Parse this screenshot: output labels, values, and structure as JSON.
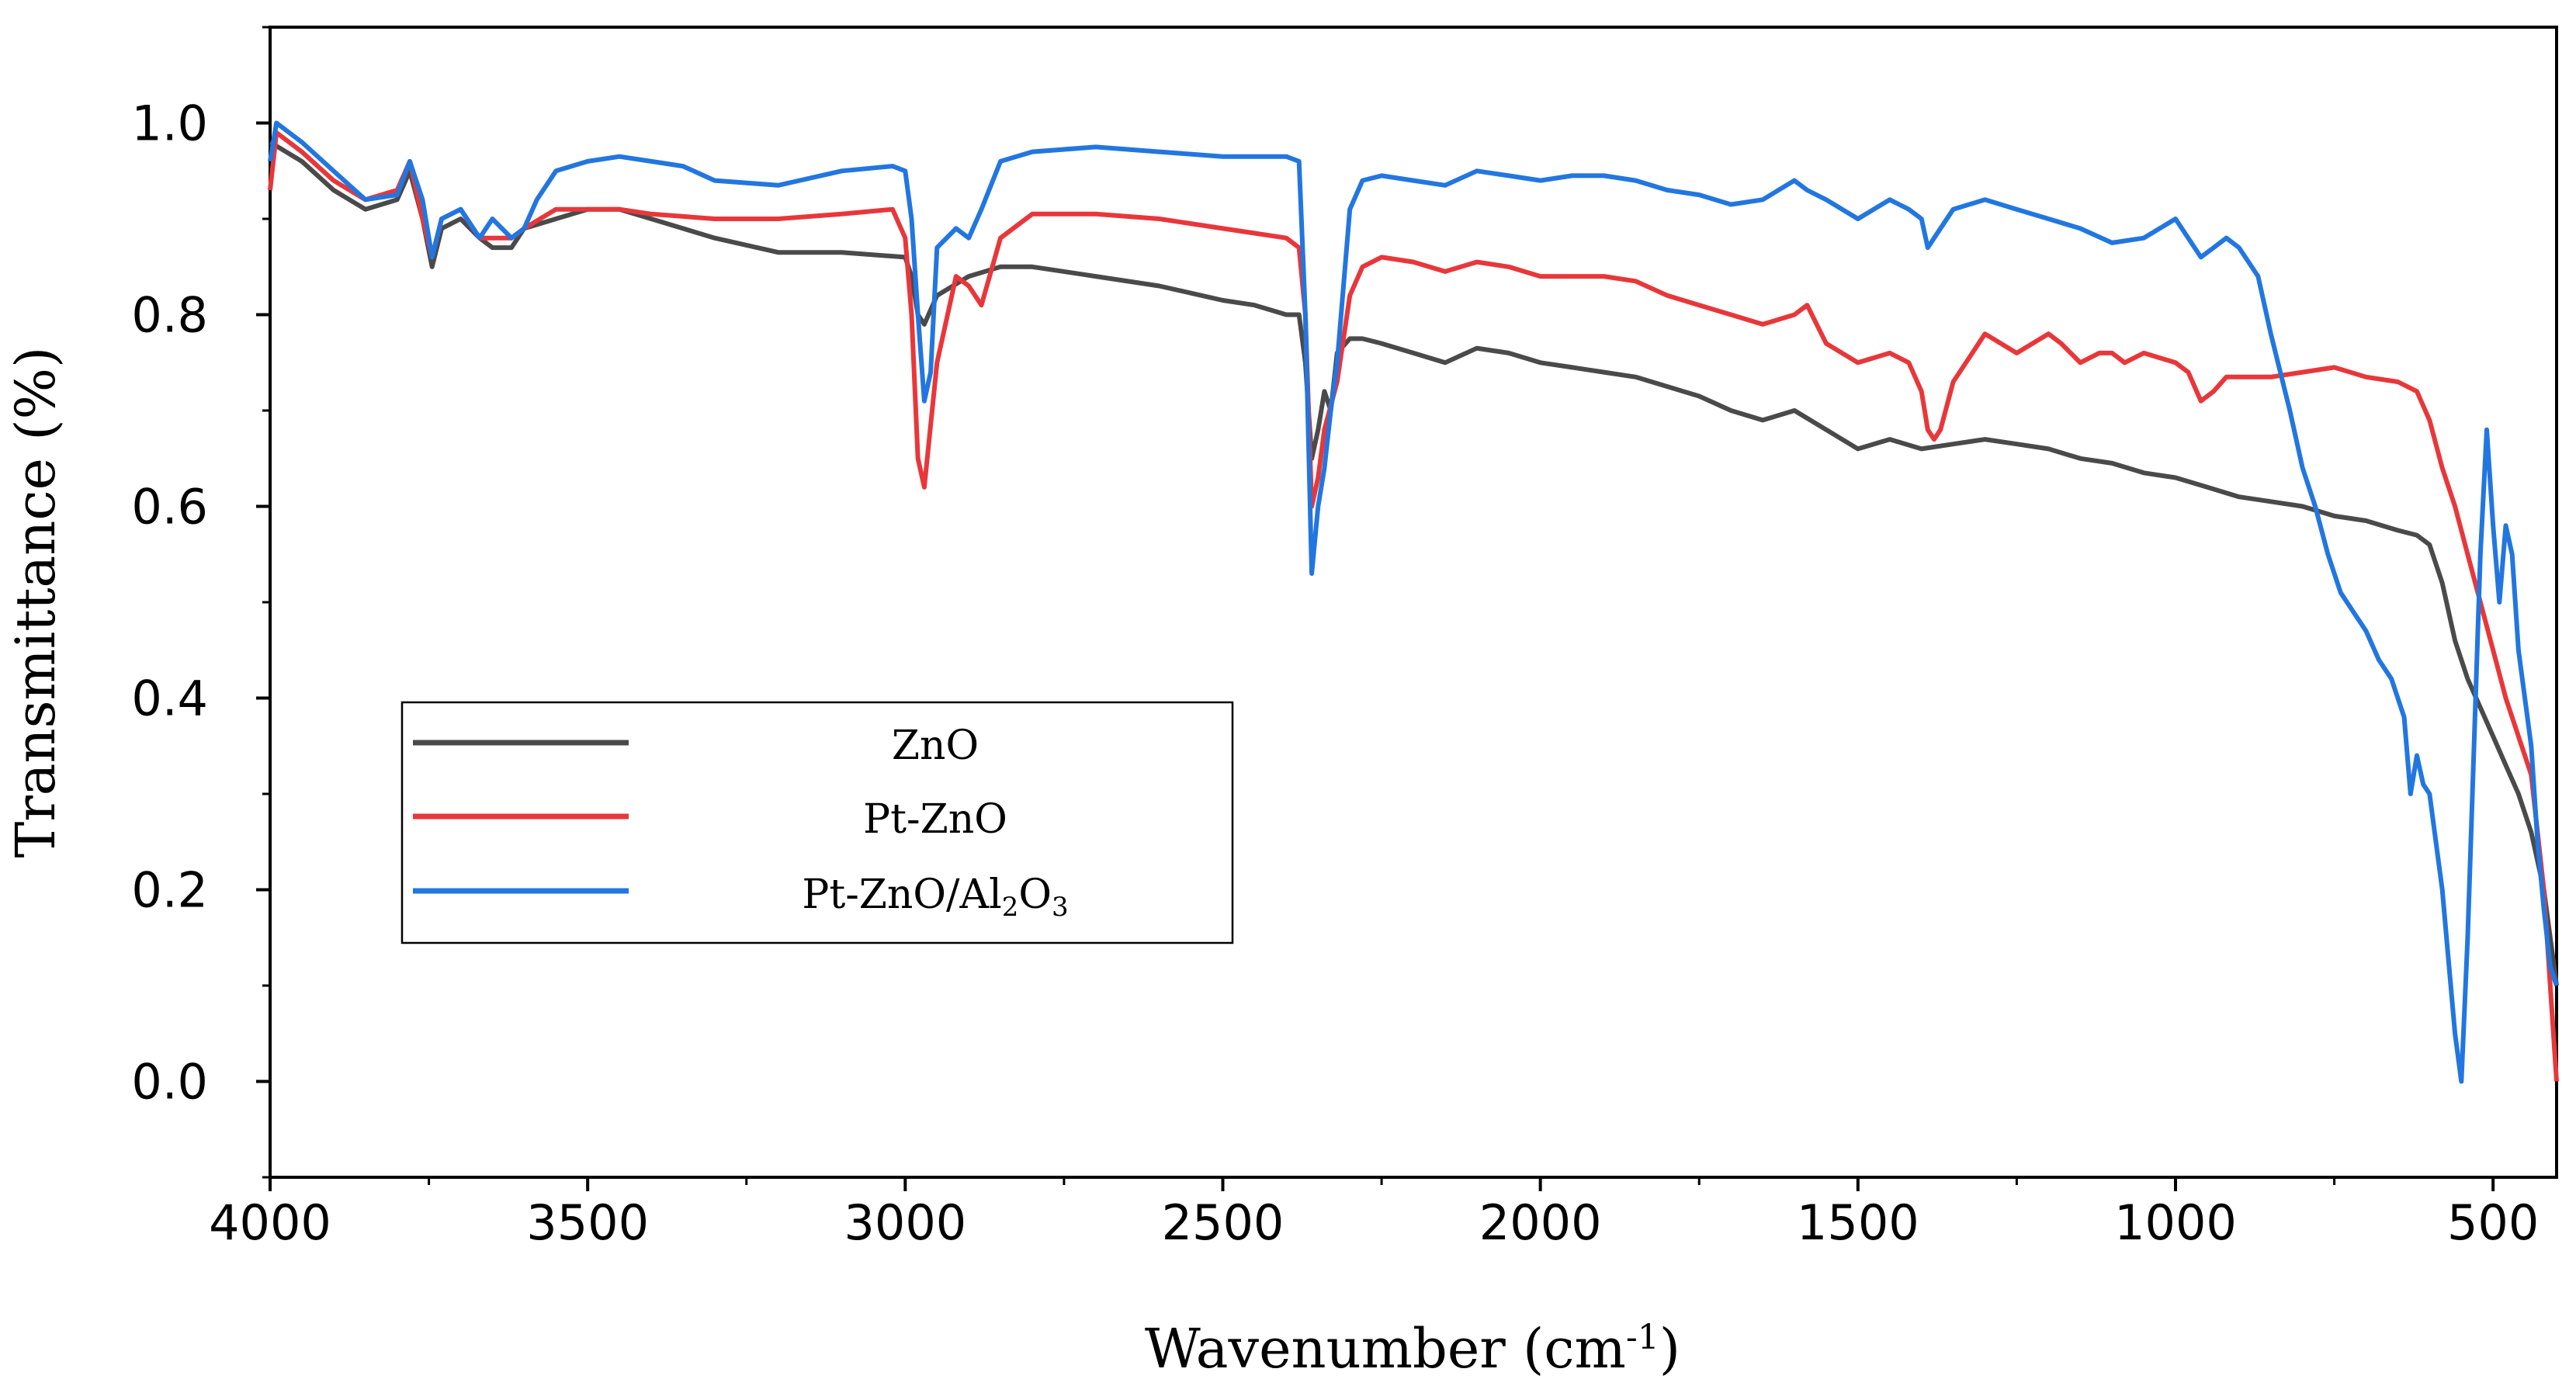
{
  "colors": {
    "ZnO": "#4a4a4a",
    "Pt-ZnO": "#e8373a",
    "Pt-ZnO/Al2O3": "#2276e0"
  },
  "chart_data": {
    "type": "line",
    "xlabel_main": "Wavenumber (cm",
    "xlabel_sup": "-1",
    "xlabel_end": ")",
    "ylabel": "Transmittance (%)",
    "xlim": [
      4000,
      400
    ],
    "ylim": [
      -0.1,
      1.1
    ],
    "x_ticks": [
      4000,
      3500,
      3000,
      2500,
      2000,
      1500,
      1000,
      500
    ],
    "x_tick_labels": [
      "4000",
      "3500",
      "3000",
      "2500",
      "2000",
      "1500",
      "1000",
      "500"
    ],
    "y_ticks": [
      0.0,
      0.2,
      0.4,
      0.6,
      0.8,
      1.0
    ],
    "y_tick_labels": [
      "0.0",
      "0.2",
      "0.4",
      "0.6",
      "0.8",
      "1.0"
    ],
    "legend": {
      "placement": "lower-left",
      "entries": [
        {
          "series": "ZnO",
          "label": "ZnO"
        },
        {
          "series": "Pt-ZnO",
          "label": "Pt-ZnO"
        },
        {
          "series": "Pt-ZnO/Al2O3",
          "label_main": "Pt-ZnO/Al",
          "label_sub1": "2",
          "label_mid": "O",
          "label_sub2": "3"
        }
      ]
    },
    "series": [
      {
        "name": "ZnO",
        "x": [
          4000,
          3950,
          3900,
          3850,
          3800,
          3780,
          3760,
          3745,
          3730,
          3700,
          3670,
          3650,
          3620,
          3600,
          3550,
          3500,
          3450,
          3400,
          3350,
          3300,
          3200,
          3100,
          3000,
          2990,
          2980,
          2970,
          2950,
          2900,
          2850,
          2800,
          2700,
          2600,
          2500,
          2450,
          2400,
          2380,
          2370,
          2360,
          2350,
          2340,
          2330,
          2320,
          2300,
          2280,
          2250,
          2200,
          2150,
          2100,
          2050,
          2000,
          1950,
          1900,
          1850,
          1800,
          1750,
          1700,
          1650,
          1600,
          1550,
          1500,
          1450,
          1400,
          1350,
          1300,
          1250,
          1200,
          1150,
          1100,
          1050,
          1000,
          950,
          900,
          850,
          800,
          750,
          700,
          650,
          620,
          600,
          580,
          560,
          540,
          520,
          500,
          480,
          460,
          440,
          420,
          410,
          400
        ],
        "y": [
          0.98,
          0.96,
          0.93,
          0.91,
          0.92,
          0.95,
          0.9,
          0.85,
          0.89,
          0.9,
          0.88,
          0.87,
          0.87,
          0.89,
          0.9,
          0.91,
          0.91,
          0.9,
          0.89,
          0.88,
          0.865,
          0.865,
          0.86,
          0.84,
          0.8,
          0.79,
          0.82,
          0.84,
          0.85,
          0.85,
          0.84,
          0.83,
          0.815,
          0.81,
          0.8,
          0.8,
          0.75,
          0.65,
          0.68,
          0.72,
          0.7,
          0.76,
          0.775,
          0.775,
          0.77,
          0.76,
          0.75,
          0.765,
          0.76,
          0.75,
          0.745,
          0.74,
          0.735,
          0.725,
          0.715,
          0.7,
          0.69,
          0.7,
          0.68,
          0.66,
          0.67,
          0.66,
          0.665,
          0.67,
          0.665,
          0.66,
          0.65,
          0.645,
          0.635,
          0.63,
          0.62,
          0.61,
          0.605,
          0.6,
          0.59,
          0.585,
          0.575,
          0.57,
          0.56,
          0.52,
          0.46,
          0.42,
          0.39,
          0.36,
          0.33,
          0.3,
          0.26,
          0.2,
          0.15,
          0.1
        ]
      },
      {
        "name": "Pt-ZnO",
        "x": [
          4000,
          3990,
          3950,
          3900,
          3850,
          3800,
          3780,
          3760,
          3745,
          3730,
          3700,
          3670,
          3650,
          3620,
          3600,
          3550,
          3500,
          3450,
          3400,
          3300,
          3200,
          3100,
          3020,
          3000,
          2990,
          2980,
          2970,
          2950,
          2920,
          2900,
          2880,
          2850,
          2800,
          2700,
          2600,
          2500,
          2450,
          2400,
          2380,
          2370,
          2360,
          2350,
          2340,
          2320,
          2300,
          2280,
          2250,
          2200,
          2150,
          2100,
          2050,
          2000,
          1950,
          1900,
          1850,
          1800,
          1750,
          1700,
          1650,
          1600,
          1580,
          1550,
          1500,
          1450,
          1420,
          1400,
          1390,
          1380,
          1370,
          1350,
          1300,
          1250,
          1200,
          1180,
          1150,
          1120,
          1100,
          1080,
          1050,
          1000,
          980,
          960,
          940,
          920,
          900,
          850,
          800,
          750,
          700,
          650,
          620,
          600,
          580,
          560,
          540,
          520,
          500,
          480,
          460,
          440,
          420,
          410,
          400
        ],
        "y": [
          0.93,
          0.99,
          0.97,
          0.94,
          0.92,
          0.93,
          0.96,
          0.9,
          0.86,
          0.9,
          0.91,
          0.88,
          0.88,
          0.88,
          0.89,
          0.91,
          0.91,
          0.91,
          0.905,
          0.9,
          0.9,
          0.905,
          0.91,
          0.88,
          0.8,
          0.65,
          0.62,
          0.75,
          0.84,
          0.83,
          0.81,
          0.88,
          0.905,
          0.905,
          0.9,
          0.89,
          0.885,
          0.88,
          0.87,
          0.8,
          0.6,
          0.63,
          0.68,
          0.73,
          0.82,
          0.85,
          0.86,
          0.855,
          0.845,
          0.855,
          0.85,
          0.84,
          0.84,
          0.84,
          0.835,
          0.82,
          0.81,
          0.8,
          0.79,
          0.8,
          0.81,
          0.77,
          0.75,
          0.76,
          0.75,
          0.72,
          0.68,
          0.67,
          0.68,
          0.73,
          0.78,
          0.76,
          0.78,
          0.77,
          0.75,
          0.76,
          0.76,
          0.75,
          0.76,
          0.75,
          0.74,
          0.71,
          0.72,
          0.735,
          0.735,
          0.735,
          0.74,
          0.745,
          0.735,
          0.73,
          0.72,
          0.69,
          0.64,
          0.6,
          0.55,
          0.5,
          0.45,
          0.4,
          0.36,
          0.32,
          0.2,
          0.1,
          0.0
        ]
      },
      {
        "name": "Pt-ZnO/Al2O3",
        "x": [
          4000,
          3990,
          3950,
          3900,
          3850,
          3800,
          3780,
          3760,
          3745,
          3730,
          3700,
          3670,
          3650,
          3620,
          3600,
          3580,
          3550,
          3500,
          3450,
          3400,
          3350,
          3300,
          3200,
          3100,
          3020,
          3000,
          2990,
          2980,
          2970,
          2960,
          2950,
          2920,
          2900,
          2880,
          2850,
          2800,
          2700,
          2600,
          2500,
          2450,
          2400,
          2380,
          2370,
          2360,
          2350,
          2340,
          2330,
          2320,
          2300,
          2280,
          2250,
          2200,
          2150,
          2100,
          2050,
          2000,
          1950,
          1900,
          1850,
          1800,
          1750,
          1700,
          1650,
          1600,
          1580,
          1550,
          1500,
          1450,
          1420,
          1400,
          1390,
          1380,
          1350,
          1300,
          1250,
          1200,
          1150,
          1100,
          1050,
          1000,
          960,
          940,
          920,
          900,
          870,
          850,
          820,
          800,
          780,
          760,
          740,
          720,
          700,
          680,
          660,
          640,
          630,
          620,
          610,
          600,
          580,
          560,
          550,
          540,
          530,
          520,
          510,
          500,
          490,
          480,
          470,
          460,
          450,
          440,
          430,
          420,
          410,
          400
        ],
        "y": [
          0.96,
          1.0,
          0.98,
          0.95,
          0.92,
          0.925,
          0.96,
          0.92,
          0.86,
          0.9,
          0.91,
          0.88,
          0.9,
          0.88,
          0.89,
          0.92,
          0.95,
          0.96,
          0.965,
          0.96,
          0.955,
          0.94,
          0.935,
          0.95,
          0.955,
          0.95,
          0.9,
          0.8,
          0.71,
          0.74,
          0.87,
          0.89,
          0.88,
          0.91,
          0.96,
          0.97,
          0.975,
          0.97,
          0.965,
          0.965,
          0.965,
          0.96,
          0.8,
          0.53,
          0.6,
          0.64,
          0.7,
          0.75,
          0.91,
          0.94,
          0.945,
          0.94,
          0.935,
          0.95,
          0.945,
          0.94,
          0.945,
          0.945,
          0.94,
          0.93,
          0.925,
          0.915,
          0.92,
          0.94,
          0.93,
          0.92,
          0.9,
          0.92,
          0.91,
          0.9,
          0.87,
          0.88,
          0.91,
          0.92,
          0.91,
          0.9,
          0.89,
          0.875,
          0.88,
          0.9,
          0.86,
          0.87,
          0.88,
          0.87,
          0.84,
          0.78,
          0.7,
          0.64,
          0.6,
          0.55,
          0.51,
          0.49,
          0.47,
          0.44,
          0.42,
          0.38,
          0.3,
          0.34,
          0.31,
          0.3,
          0.2,
          0.05,
          0.0,
          0.15,
          0.35,
          0.55,
          0.68,
          0.58,
          0.5,
          0.58,
          0.55,
          0.45,
          0.4,
          0.35,
          0.25,
          0.18,
          0.12,
          0.1
        ]
      }
    ]
  }
}
